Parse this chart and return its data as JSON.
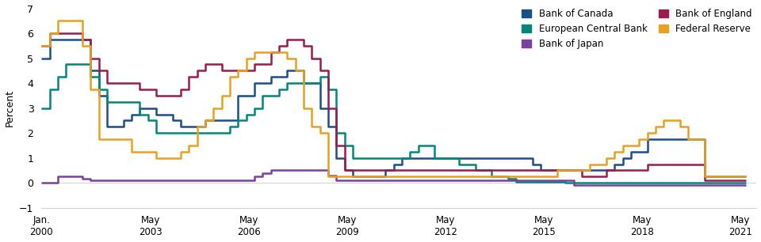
{
  "ylabel": "Percent",
  "ylim": [
    -1,
    7
  ],
  "yticks": [
    -1,
    0,
    1,
    2,
    3,
    4,
    5,
    6,
    7
  ],
  "colors": {
    "Bank of Canada": "#1B4F8A",
    "European Central Bank": "#00877A",
    "Bank of Japan": "#7B3FA0",
    "Bank of England": "#9B1B4F",
    "Federal Reserve": "#E8A020"
  },
  "series": {
    "Bank of Canada": [
      [
        2000.0,
        5.0
      ],
      [
        2000.25,
        5.75
      ],
      [
        2001.0,
        5.75
      ],
      [
        2001.5,
        4.5
      ],
      [
        2001.75,
        3.5
      ],
      [
        2002.0,
        2.25
      ],
      [
        2002.5,
        2.5
      ],
      [
        2002.75,
        2.75
      ],
      [
        2003.0,
        3.0
      ],
      [
        2003.25,
        3.0
      ],
      [
        2003.5,
        2.75
      ],
      [
        2004.0,
        2.5
      ],
      [
        2004.25,
        2.25
      ],
      [
        2004.5,
        2.25
      ],
      [
        2005.0,
        2.5
      ],
      [
        2005.5,
        2.5
      ],
      [
        2006.0,
        3.5
      ],
      [
        2006.5,
        4.0
      ],
      [
        2007.0,
        4.25
      ],
      [
        2007.5,
        4.5
      ],
      [
        2008.0,
        4.0
      ],
      [
        2008.5,
        3.0
      ],
      [
        2008.75,
        2.25
      ],
      [
        2009.0,
        1.0
      ],
      [
        2009.25,
        0.5
      ],
      [
        2009.5,
        0.25
      ],
      [
        2010.0,
        0.25
      ],
      [
        2010.5,
        0.5
      ],
      [
        2010.75,
        0.75
      ],
      [
        2011.0,
        1.0
      ],
      [
        2011.5,
        1.0
      ],
      [
        2012.0,
        1.0
      ],
      [
        2013.0,
        1.0
      ],
      [
        2014.0,
        1.0
      ],
      [
        2015.0,
        0.75
      ],
      [
        2015.25,
        0.5
      ],
      [
        2016.0,
        0.5
      ],
      [
        2017.0,
        0.5
      ],
      [
        2017.5,
        0.75
      ],
      [
        2017.75,
        1.0
      ],
      [
        2018.0,
        1.25
      ],
      [
        2018.5,
        1.75
      ],
      [
        2019.0,
        1.75
      ],
      [
        2020.0,
        1.75
      ],
      [
        2020.25,
        0.25
      ],
      [
        2021.5,
        0.25
      ]
    ],
    "European Central Bank": [
      [
        2000.0,
        3.0
      ],
      [
        2000.25,
        3.75
      ],
      [
        2000.5,
        4.25
      ],
      [
        2000.75,
        4.75
      ],
      [
        2001.0,
        4.75
      ],
      [
        2001.5,
        4.25
      ],
      [
        2001.75,
        3.75
      ],
      [
        2002.0,
        3.25
      ],
      [
        2002.5,
        3.25
      ],
      [
        2003.0,
        2.75
      ],
      [
        2003.25,
        2.5
      ],
      [
        2003.5,
        2.0
      ],
      [
        2004.0,
        2.0
      ],
      [
        2005.0,
        2.0
      ],
      [
        2005.75,
        2.25
      ],
      [
        2006.0,
        2.5
      ],
      [
        2006.25,
        2.75
      ],
      [
        2006.5,
        3.0
      ],
      [
        2006.75,
        3.5
      ],
      [
        2007.0,
        3.5
      ],
      [
        2007.25,
        3.75
      ],
      [
        2007.5,
        4.0
      ],
      [
        2008.0,
        4.0
      ],
      [
        2008.5,
        4.25
      ],
      [
        2008.75,
        3.75
      ],
      [
        2009.0,
        2.0
      ],
      [
        2009.25,
        1.5
      ],
      [
        2009.5,
        1.0
      ],
      [
        2010.0,
        1.0
      ],
      [
        2011.0,
        1.0
      ],
      [
        2011.25,
        1.25
      ],
      [
        2011.5,
        1.5
      ],
      [
        2012.0,
        1.0
      ],
      [
        2012.5,
        1.0
      ],
      [
        2012.75,
        0.75
      ],
      [
        2013.0,
        0.75
      ],
      [
        2013.25,
        0.5
      ],
      [
        2013.75,
        0.25
      ],
      [
        2014.0,
        0.25
      ],
      [
        2014.25,
        0.15
      ],
      [
        2014.5,
        0.05
      ],
      [
        2015.0,
        0.05
      ],
      [
        2016.0,
        0.0
      ],
      [
        2021.5,
        0.0
      ]
    ],
    "Bank of Japan": [
      [
        2000.0,
        0.0
      ],
      [
        2000.5,
        0.25
      ],
      [
        2001.0,
        0.25
      ],
      [
        2001.25,
        0.15
      ],
      [
        2001.5,
        0.1
      ],
      [
        2002.0,
        0.1
      ],
      [
        2006.5,
        0.25
      ],
      [
        2006.75,
        0.4
      ],
      [
        2007.0,
        0.5
      ],
      [
        2008.0,
        0.5
      ],
      [
        2008.75,
        0.3
      ],
      [
        2009.0,
        0.1
      ],
      [
        2010.0,
        0.1
      ],
      [
        2016.25,
        -0.1
      ],
      [
        2021.5,
        -0.1
      ]
    ],
    "Bank of England": [
      [
        2000.0,
        5.5
      ],
      [
        2000.25,
        6.0
      ],
      [
        2001.0,
        6.0
      ],
      [
        2001.25,
        5.75
      ],
      [
        2001.5,
        5.0
      ],
      [
        2001.75,
        4.5
      ],
      [
        2002.0,
        4.0
      ],
      [
        2002.5,
        4.0
      ],
      [
        2003.0,
        3.75
      ],
      [
        2003.5,
        3.5
      ],
      [
        2004.0,
        3.5
      ],
      [
        2004.25,
        3.75
      ],
      [
        2004.5,
        4.25
      ],
      [
        2004.75,
        4.5
      ],
      [
        2005.0,
        4.75
      ],
      [
        2005.25,
        4.75
      ],
      [
        2005.5,
        4.5
      ],
      [
        2005.75,
        4.5
      ],
      [
        2006.0,
        4.5
      ],
      [
        2006.5,
        4.75
      ],
      [
        2007.0,
        5.25
      ],
      [
        2007.25,
        5.5
      ],
      [
        2007.5,
        5.75
      ],
      [
        2008.0,
        5.5
      ],
      [
        2008.25,
        5.0
      ],
      [
        2008.5,
        4.5
      ],
      [
        2008.75,
        3.0
      ],
      [
        2009.0,
        1.5
      ],
      [
        2009.25,
        0.5
      ],
      [
        2010.0,
        0.5
      ],
      [
        2016.5,
        0.25
      ],
      [
        2017.0,
        0.25
      ],
      [
        2017.25,
        0.5
      ],
      [
        2018.0,
        0.5
      ],
      [
        2018.5,
        0.75
      ],
      [
        2019.0,
        0.75
      ],
      [
        2020.0,
        0.75
      ],
      [
        2020.25,
        0.1
      ],
      [
        2021.5,
        0.1
      ]
    ],
    "Federal Reserve": [
      [
        2000.0,
        5.5
      ],
      [
        2000.25,
        6.0
      ],
      [
        2000.5,
        6.5
      ],
      [
        2001.0,
        6.5
      ],
      [
        2001.25,
        5.5
      ],
      [
        2001.5,
        3.75
      ],
      [
        2001.75,
        1.75
      ],
      [
        2002.0,
        1.75
      ],
      [
        2002.75,
        1.25
      ],
      [
        2003.0,
        1.25
      ],
      [
        2003.5,
        1.0
      ],
      [
        2004.0,
        1.0
      ],
      [
        2004.25,
        1.25
      ],
      [
        2004.5,
        1.5
      ],
      [
        2004.75,
        2.25
      ],
      [
        2005.0,
        2.5
      ],
      [
        2005.25,
        3.0
      ],
      [
        2005.5,
        3.5
      ],
      [
        2005.75,
        4.25
      ],
      [
        2006.0,
        4.5
      ],
      [
        2006.25,
        5.0
      ],
      [
        2006.5,
        5.25
      ],
      [
        2007.0,
        5.25
      ],
      [
        2007.5,
        5.0
      ],
      [
        2007.75,
        4.5
      ],
      [
        2008.0,
        3.0
      ],
      [
        2008.25,
        2.25
      ],
      [
        2008.5,
        2.0
      ],
      [
        2008.75,
        0.25
      ],
      [
        2009.0,
        0.25
      ],
      [
        2015.75,
        0.5
      ],
      [
        2016.0,
        0.5
      ],
      [
        2016.5,
        0.5
      ],
      [
        2016.75,
        0.75
      ],
      [
        2017.0,
        0.75
      ],
      [
        2017.25,
        1.0
      ],
      [
        2017.5,
        1.25
      ],
      [
        2017.75,
        1.5
      ],
      [
        2018.0,
        1.5
      ],
      [
        2018.25,
        1.75
      ],
      [
        2018.5,
        2.0
      ],
      [
        2018.75,
        2.25
      ],
      [
        2019.0,
        2.5
      ],
      [
        2019.5,
        2.25
      ],
      [
        2019.75,
        1.75
      ],
      [
        2020.0,
        1.75
      ],
      [
        2020.25,
        0.25
      ],
      [
        2021.5,
        0.25
      ]
    ]
  },
  "xtick_positions": [
    2000.0,
    2003.33,
    2006.33,
    2009.33,
    2012.33,
    2015.33,
    2018.33,
    2021.33
  ],
  "xtick_labels": [
    "Jan.\n2000",
    "May\n2003",
    "May\n2006",
    "May\n2009",
    "May\n2012",
    "May\n2015",
    "May\n2018",
    "May\n2021"
  ],
  "xlim": [
    2000.0,
    2021.83
  ],
  "background_color": "#ffffff",
  "line_width": 1.8,
  "legend_order": [
    "Bank of Canada",
    "European Central Bank",
    "Bank of Japan",
    "Bank of England",
    "Federal Reserve"
  ]
}
